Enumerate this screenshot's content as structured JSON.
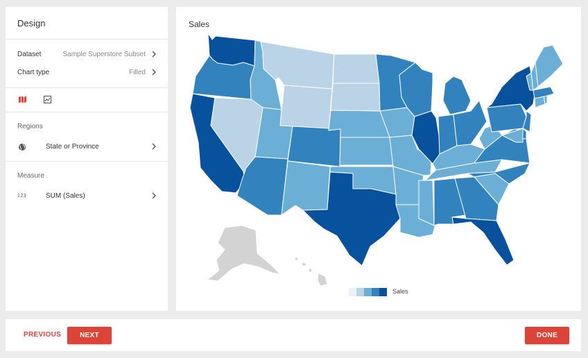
{
  "design": {
    "title": "Design",
    "dataset": {
      "label": "Dataset",
      "value": "Sample Superstore Subset"
    },
    "chart_type": {
      "label": "Chart type",
      "value": "Filled"
    },
    "icons": {
      "map": "map-icon",
      "image": "image-chart-icon"
    },
    "regions": {
      "section": "Regions",
      "value": "State or Province",
      "icon": "globe-icon"
    },
    "measure": {
      "section": "Measure",
      "value": "SUM (Sales)",
      "icon_text": "123"
    }
  },
  "chart": {
    "title": "Sales",
    "legend_label": "Sales",
    "colors": [
      "#e8f0f8",
      "#bad3e6",
      "#6baed6",
      "#3182bd",
      "#08519c"
    ],
    "inactive_color": "#d3d3d3",
    "accent_color": "#db4437"
  },
  "chart_data": {
    "type": "map",
    "title": "Sales",
    "legend": "Sales",
    "legend_bins": 5,
    "regions": [
      {
        "name": "WA",
        "bin": 5
      },
      {
        "name": "OR",
        "bin": 4
      },
      {
        "name": "CA",
        "bin": 5
      },
      {
        "name": "NV",
        "bin": 2
      },
      {
        "name": "ID",
        "bin": 3
      },
      {
        "name": "MT",
        "bin": 2
      },
      {
        "name": "WY",
        "bin": 2
      },
      {
        "name": "UT",
        "bin": 3
      },
      {
        "name": "AZ",
        "bin": 4
      },
      {
        "name": "CO",
        "bin": 4
      },
      {
        "name": "NM",
        "bin": 3
      },
      {
        "name": "ND",
        "bin": 2
      },
      {
        "name": "SD",
        "bin": 2
      },
      {
        "name": "NE",
        "bin": 3
      },
      {
        "name": "KS",
        "bin": 3
      },
      {
        "name": "OK",
        "bin": 3
      },
      {
        "name": "TX",
        "bin": 5
      },
      {
        "name": "MN",
        "bin": 4
      },
      {
        "name": "IA",
        "bin": 3
      },
      {
        "name": "MO",
        "bin": 3
      },
      {
        "name": "AR",
        "bin": 3
      },
      {
        "name": "LA",
        "bin": 3
      },
      {
        "name": "WI",
        "bin": 4
      },
      {
        "name": "IL",
        "bin": 5
      },
      {
        "name": "MI",
        "bin": 4
      },
      {
        "name": "IN",
        "bin": 4
      },
      {
        "name": "OH",
        "bin": 4
      },
      {
        "name": "KY",
        "bin": 3
      },
      {
        "name": "TN",
        "bin": 3
      },
      {
        "name": "MS",
        "bin": 3
      },
      {
        "name": "AL",
        "bin": 4
      },
      {
        "name": "GA",
        "bin": 4
      },
      {
        "name": "FL",
        "bin": 5
      },
      {
        "name": "SC",
        "bin": 3
      },
      {
        "name": "NC",
        "bin": 4
      },
      {
        "name": "VA",
        "bin": 4
      },
      {
        "name": "WV",
        "bin": 3
      },
      {
        "name": "PA",
        "bin": 4
      },
      {
        "name": "NY",
        "bin": 5
      },
      {
        "name": "NJ",
        "bin": 4
      },
      {
        "name": "DE",
        "bin": 4
      },
      {
        "name": "MD",
        "bin": 3
      },
      {
        "name": "CT",
        "bin": 3
      },
      {
        "name": "RI",
        "bin": 3
      },
      {
        "name": "MA",
        "bin": 4
      },
      {
        "name": "VT",
        "bin": 3
      },
      {
        "name": "NH",
        "bin": 3
      },
      {
        "name": "ME",
        "bin": 3
      },
      {
        "name": "AK",
        "bin": 0
      },
      {
        "name": "HI",
        "bin": 0
      }
    ]
  },
  "footer": {
    "previous": "PREVIOUS",
    "next": "NEXT",
    "done": "DONE"
  }
}
